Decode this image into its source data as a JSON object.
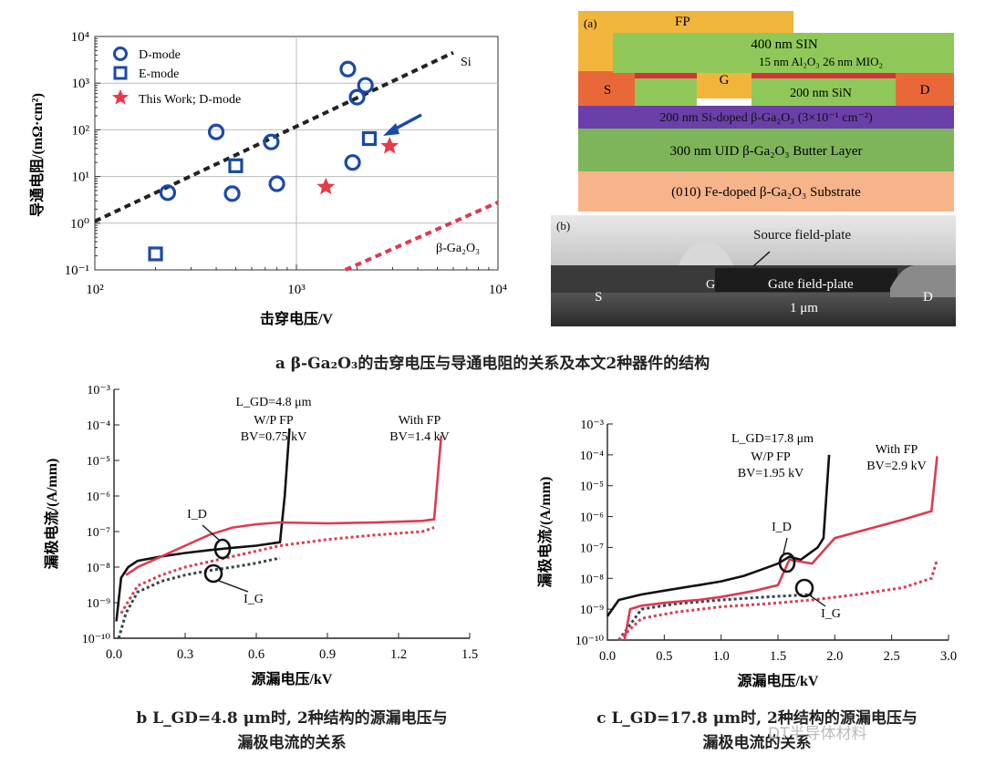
{
  "chart_data": [
    {
      "type": "scatter",
      "title": "",
      "xlabel": "击穿电压/V",
      "ylabel": "导通电阻/(mΩ·cm²)",
      "xscale": "log",
      "yscale": "log",
      "xlim": [
        100,
        10000
      ],
      "ylim": [
        0.1,
        10000
      ],
      "xticks": [
        "10²",
        "10³",
        "10⁴"
      ],
      "yticks": [
        "10⁻¹",
        "10⁰",
        "10¹",
        "10²",
        "10³",
        "10⁴"
      ],
      "grid": true,
      "legend_position": "top-left",
      "series": [
        {
          "name": "D-mode",
          "marker": "circle",
          "color": "#1a4aa8",
          "points": [
            [
              230,
              4.5
            ],
            [
              400,
              90
            ],
            [
              480,
              4.3
            ],
            [
              750,
              55
            ],
            [
              800,
              7
            ],
            [
              1800,
              2000
            ],
            [
              1900,
              20
            ],
            [
              2000,
              500
            ],
            [
              2200,
              900
            ]
          ]
        },
        {
          "name": "E-mode",
          "marker": "square",
          "color": "#1a4aa8",
          "points": [
            [
              200,
              0.22
            ],
            [
              500,
              17
            ],
            [
              2300,
              65
            ]
          ]
        },
        {
          "name": "This Work; D-mode",
          "marker": "star",
          "color": "#e83a4a",
          "points": [
            [
              1400,
              6
            ],
            [
              2900,
              45
            ]
          ]
        }
      ],
      "lines": [
        {
          "label": "Si",
          "style": "dashed",
          "color": "#222222",
          "points": [
            [
              100,
              1.1
            ],
            [
              6000,
              4500
            ]
          ]
        },
        {
          "label": "β-Ga₂O₃",
          "style": "dashed",
          "color": "#e0394f",
          "points": [
            [
              1750,
              0.1
            ],
            [
              10000,
              2.8
            ]
          ]
        }
      ],
      "caption": "a  β-Ga₂O₃的击穿电压与导通电阻的关系及本文2种器件的结构"
    },
    {
      "type": "line",
      "xlabel": "源漏电压/kV",
      "ylabel": "漏极电流/(A/mm)",
      "yscale": "log",
      "xlim": [
        0,
        1.5
      ],
      "ylim": [
        1e-10,
        0.001
      ],
      "xticks": [
        "0.0",
        "0.3",
        "0.6",
        "0.9",
        "1.2",
        "1.5"
      ],
      "yticks": [
        "10⁻¹⁰",
        "10⁻⁹",
        "10⁻⁸",
        "10⁻⁷",
        "10⁻⁶",
        "10⁻⁵",
        "10⁻⁴",
        "10⁻³"
      ],
      "annotations": {
        "lgd": "L_GD=4.8 μm",
        "wp_label": "W/P FP",
        "wp_bv": "BV=0.75 kV",
        "fp_label": "With FP",
        "fp_bv": "BV=1.4 kV",
        "id_label": "I_D",
        "ig_label": "I_G"
      },
      "series": [
        {
          "name": "W/P FP I_D",
          "style": "solid",
          "color": "#111111",
          "points": [
            [
              0.01,
              3e-10
            ],
            [
              0.03,
              5e-09
            ],
            [
              0.06,
              1e-08
            ],
            [
              0.1,
              1.5e-08
            ],
            [
              0.2,
              2e-08
            ],
            [
              0.3,
              2.5e-08
            ],
            [
              0.4,
              3e-08
            ],
            [
              0.5,
              3.5e-08
            ],
            [
              0.6,
              4e-08
            ],
            [
              0.7,
              5e-08
            ],
            [
              0.72,
              1e-06
            ],
            [
              0.74,
              8e-05
            ]
          ]
        },
        {
          "name": "W/P FP I_G",
          "style": "dotted",
          "color": "#334444",
          "points": [
            [
              0.02,
              1e-10
            ],
            [
              0.05,
              5e-10
            ],
            [
              0.1,
              2e-09
            ],
            [
              0.2,
              4e-09
            ],
            [
              0.3,
              6e-09
            ],
            [
              0.4,
              8e-09
            ],
            [
              0.5,
              1e-08
            ],
            [
              0.6,
              1.3e-08
            ],
            [
              0.7,
              1.8e-08
            ]
          ]
        },
        {
          "name": "With FP I_D",
          "style": "solid",
          "color": "#e0394f",
          "points": [
            [
              0.05,
              6e-09
            ],
            [
              0.1,
              1e-08
            ],
            [
              0.2,
              2e-08
            ],
            [
              0.3,
              4e-08
            ],
            [
              0.4,
              8e-08
            ],
            [
              0.5,
              1.3e-07
            ],
            [
              0.6,
              1.6e-07
            ],
            [
              0.7,
              1.8e-07
            ],
            [
              0.9,
              1.7e-07
            ],
            [
              1.1,
              1.8e-07
            ],
            [
              1.3,
              2e-07
            ],
            [
              1.35,
              2.2e-07
            ],
            [
              1.38,
              5e-05
            ]
          ]
        },
        {
          "name": "With FP I_G",
          "style": "dotted",
          "color": "#e0394f",
          "points": [
            [
              0.03,
              5e-10
            ],
            [
              0.1,
              3e-09
            ],
            [
              0.2,
              6e-09
            ],
            [
              0.3,
              1e-08
            ],
            [
              0.5,
              2e-08
            ],
            [
              0.7,
              4e-08
            ],
            [
              0.9,
              6e-08
            ],
            [
              1.1,
              8e-08
            ],
            [
              1.3,
              1e-07
            ],
            [
              1.35,
              1.3e-07
            ]
          ]
        }
      ],
      "caption_line1": "b  L_GD=4.8 μm时, 2种结构的源漏电压与",
      "caption_line2": "漏极电流的关系"
    },
    {
      "type": "line",
      "xlabel": "源漏电压/kV",
      "ylabel": "漏极电流/(A/mm)",
      "yscale": "log",
      "xlim": [
        0,
        3.0
      ],
      "ylim": [
        1e-10,
        0.001
      ],
      "xticks": [
        "0.0",
        "0.5",
        "1.0",
        "1.5",
        "2.0",
        "2.5",
        "3.0"
      ],
      "yticks": [
        "10⁻¹⁰",
        "10⁻⁹",
        "10⁻⁸",
        "10⁻⁷",
        "10⁻⁶",
        "10⁻⁵",
        "10⁻⁴",
        "10⁻³"
      ],
      "annotations": {
        "lgd": "L_GD=17.8 μm",
        "wp_label": "W/P FP",
        "wp_bv": "BV=1.95 kV",
        "fp_label": "With FP",
        "fp_bv": "BV=2.9 kV",
        "id_label": "I_D",
        "ig_label": "I_G"
      },
      "series": [
        {
          "name": "W/P FP I_D",
          "style": "solid",
          "color": "#111111",
          "points": [
            [
              0.0,
              6e-10
            ],
            [
              0.1,
              2e-09
            ],
            [
              0.3,
              3e-09
            ],
            [
              0.5,
              4e-09
            ],
            [
              0.8,
              6e-09
            ],
            [
              1.0,
              8e-09
            ],
            [
              1.2,
              1.2e-08
            ],
            [
              1.4,
              2.2e-08
            ],
            [
              1.5,
              3e-08
            ],
            [
              1.6,
              5e-08
            ],
            [
              1.7,
              4e-08
            ],
            [
              1.85,
              1e-07
            ],
            [
              1.9,
              2e-07
            ],
            [
              1.95,
              0.0001
            ]
          ]
        },
        {
          "name": "W/P FP I_G",
          "style": "dotted",
          "color": "#334444",
          "points": [
            [
              0.1,
              1e-10
            ],
            [
              0.3,
              1e-09
            ],
            [
              0.6,
              1.5e-09
            ],
            [
              1.0,
              2e-09
            ],
            [
              1.4,
              2.5e-09
            ],
            [
              1.8,
              3e-09
            ]
          ]
        },
        {
          "name": "With FP I_D",
          "style": "solid",
          "color": "#e0394f",
          "points": [
            [
              0.15,
              1e-10
            ],
            [
              0.2,
              1e-09
            ],
            [
              0.3,
              1.3e-09
            ],
            [
              0.5,
              1.6e-09
            ],
            [
              0.8,
              2e-09
            ],
            [
              1.0,
              2.5e-09
            ],
            [
              1.3,
              4e-09
            ],
            [
              1.5,
              6e-09
            ],
            [
              1.6,
              4e-08
            ],
            [
              1.8,
              3e-08
            ],
            [
              2.0,
              2e-07
            ],
            [
              2.3,
              4e-07
            ],
            [
              2.6,
              8e-07
            ],
            [
              2.85,
              1.5e-06
            ],
            [
              2.9,
              9e-05
            ]
          ]
        },
        {
          "name": "With FP I_G",
          "style": "dotted",
          "color": "#e0394f",
          "points": [
            [
              0.1,
              1e-10
            ],
            [
              0.3,
              5e-10
            ],
            [
              0.6,
              8e-10
            ],
            [
              1.0,
              1.2e-09
            ],
            [
              1.4,
              1.5e-09
            ],
            [
              1.8,
              2e-09
            ],
            [
              2.2,
              3e-09
            ],
            [
              2.6,
              5e-09
            ],
            [
              2.85,
              1e-08
            ],
            [
              2.9,
              4e-08
            ]
          ]
        }
      ],
      "caption_line1": "c  L_GD=17.8 μm时, 2种结构的源漏电压与",
      "caption_line2": "漏极电流的关系"
    }
  ],
  "structure": {
    "panel_label": "(a)",
    "fp": "FP",
    "sin400": "400 nm SIN",
    "oxide": "15 nm Al₂O₃ 26 nm MIO₂",
    "s": "S",
    "g": "G",
    "d": "D",
    "sin200": "200 nm SiN",
    "channel": "200 nm Si-doped β-Ga₂O₃ (3×10⁻¹ cm⁻²)",
    "buffer": "300 nm UID β-Ga₂O₃ Butter Layer",
    "substrate": "(010) Fe-doped β-Ga₂O₃ Substrate",
    "colors": {
      "fp": "#f2b53c",
      "sin400": "#8fc858",
      "metal": "#e9683a",
      "oxide": "#d8303a",
      "sin200": "#8fc858",
      "channel": "#6a3fa8",
      "buffer": "#7fb55a",
      "substrate": "#f7b48a"
    }
  },
  "sem": {
    "panel_label": "(b)",
    "source_fp": "Source field-plate",
    "gate_fp": "Gate field-plate",
    "s": "S",
    "g": "G",
    "d": "D",
    "scale": "1 μm"
  },
  "watermark": "DT半导体材料"
}
